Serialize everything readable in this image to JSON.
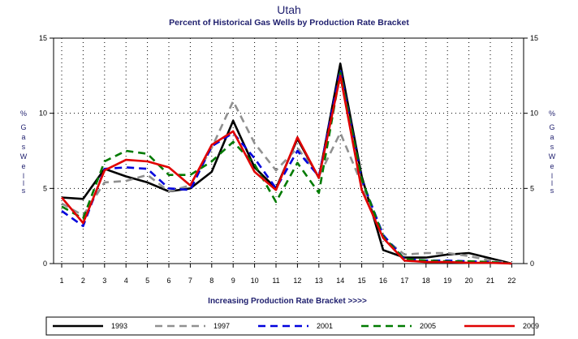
{
  "chart_data": {
    "type": "line",
    "title": "Utah",
    "subtitle": "Percent of Historical Gas Wells by Production Rate Bracket",
    "xlabel": "Increasing Production Rate Bracket >>>>",
    "ylabel": [
      "%",
      "G",
      "a",
      "s",
      "W",
      "e",
      "l",
      "l",
      "s"
    ],
    "categories": [
      "1",
      "2",
      "3",
      "4",
      "5",
      "6",
      "7",
      "8",
      "9",
      "10",
      "11",
      "12",
      "13",
      "14",
      "15",
      "16",
      "17",
      "18",
      "19",
      "20",
      "21",
      "22"
    ],
    "y_ticks": [
      "0",
      "5",
      "10",
      "15"
    ],
    "ylim": [
      0,
      15
    ],
    "grid": "dotted",
    "legend_position": "bottom",
    "series": [
      {
        "name": "1993",
        "color": "#000000",
        "dash": "solid",
        "values": [
          4.4,
          4.3,
          6.3,
          5.8,
          5.4,
          4.8,
          5.0,
          6.1,
          9.5,
          6.4,
          5.0,
          8.3,
          5.7,
          13.3,
          5.8,
          0.9,
          0.4,
          0.4,
          0.6,
          0.7,
          0.35,
          0.0
        ]
      },
      {
        "name": "1997",
        "color": "#909090",
        "dash": "dashed",
        "values": [
          4.0,
          3.2,
          5.4,
          5.5,
          5.9,
          4.8,
          5.2,
          7.7,
          10.8,
          8.0,
          6.2,
          7.7,
          5.8,
          8.7,
          5.3,
          1.7,
          0.6,
          0.7,
          0.7,
          0.5,
          0.2,
          0.0
        ]
      },
      {
        "name": "2001",
        "color": "#0000dd",
        "dash": "dashed",
        "values": [
          3.5,
          2.5,
          6.3,
          6.4,
          6.3,
          5.0,
          4.9,
          7.8,
          8.7,
          7.0,
          5.0,
          7.5,
          5.8,
          12.9,
          5.6,
          1.9,
          0.3,
          0.2,
          0.2,
          0.15,
          0.1,
          0.0
        ]
      },
      {
        "name": "2005",
        "color": "#007a00",
        "dash": "dashed",
        "values": [
          3.8,
          3.0,
          6.8,
          7.5,
          7.3,
          5.9,
          5.9,
          6.8,
          8.1,
          6.6,
          4.1,
          6.7,
          4.7,
          12.7,
          5.6,
          1.8,
          0.3,
          0.2,
          0.15,
          0.15,
          0.1,
          0.0
        ]
      },
      {
        "name": "2009",
        "color": "#e00000",
        "dash": "solid",
        "values": [
          4.4,
          2.7,
          6.2,
          6.9,
          6.8,
          6.4,
          5.2,
          7.9,
          8.8,
          6.1,
          4.9,
          8.4,
          5.7,
          12.5,
          4.9,
          1.7,
          0.2,
          0.1,
          0.1,
          0.05,
          0.05,
          0.0
        ]
      }
    ]
  }
}
